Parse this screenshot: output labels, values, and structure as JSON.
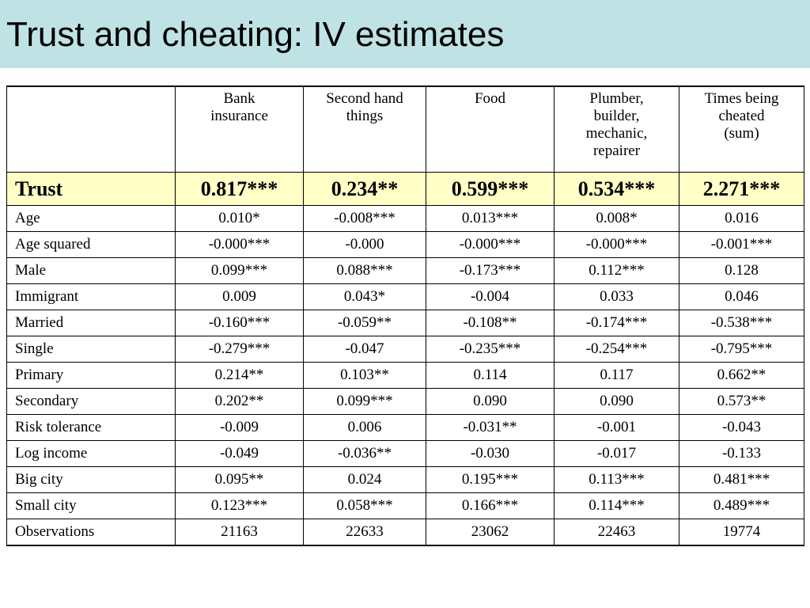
{
  "slide": {
    "title": "Trust and cheating: IV estimates"
  },
  "table": {
    "corner": "",
    "columns": [
      [
        "Bank",
        "insurance"
      ],
      [
        "Second hand",
        "things"
      ],
      [
        "Food"
      ],
      [
        "Plumber,",
        "builder,",
        "mechanic,",
        "repairer"
      ],
      [
        "Times being",
        "cheated",
        "(sum)"
      ]
    ],
    "rows": [
      {
        "label": "Trust",
        "values": [
          "0.817***",
          "0.234**",
          "0.599***",
          "0.534***",
          "2.271***"
        ]
      },
      {
        "label": "Age",
        "values": [
          "0.010*",
          "-0.008***",
          "0.013***",
          "0.008*",
          "0.016"
        ]
      },
      {
        "label": "Age squared",
        "values": [
          "-0.000***",
          "-0.000",
          "-0.000***",
          "-0.000***",
          "-0.001***"
        ]
      },
      {
        "label": "Male",
        "values": [
          "0.099***",
          "0.088***",
          "-0.173***",
          "0.112***",
          "0.128"
        ]
      },
      {
        "label": "Immigrant",
        "values": [
          "0.009",
          "0.043*",
          "-0.004",
          "0.033",
          "0.046"
        ]
      },
      {
        "label": "Married",
        "values": [
          "-0.160***",
          "-0.059**",
          "-0.108**",
          "-0.174***",
          "-0.538***"
        ]
      },
      {
        "label": "Single",
        "values": [
          "-0.279***",
          "-0.047",
          "-0.235***",
          "-0.254***",
          "-0.795***"
        ]
      },
      {
        "label": "Primary",
        "values": [
          "0.214**",
          "0.103**",
          "0.114",
          "0.117",
          "0.662**"
        ]
      },
      {
        "label": "Secondary",
        "values": [
          "0.202**",
          "0.099***",
          "0.090",
          "0.090",
          "0.573**"
        ]
      },
      {
        "label": "Risk tolerance",
        "values": [
          "-0.009",
          "0.006",
          "-0.031**",
          "-0.001",
          "-0.043"
        ]
      },
      {
        "label": "Log income",
        "values": [
          "-0.049",
          "-0.036**",
          "-0.030",
          "-0.017",
          "-0.133"
        ]
      },
      {
        "label": "Big city",
        "values": [
          "0.095**",
          "0.024",
          "0.195***",
          "0.113***",
          "0.481***"
        ]
      },
      {
        "label": "Small city",
        "values": [
          "0.123***",
          "0.058***",
          "0.166***",
          "0.114***",
          "0.489***"
        ]
      },
      {
        "label": "Observations",
        "values": [
          "21163",
          "22633",
          "23062",
          "22463",
          "19774"
        ]
      }
    ]
  },
  "colors": {
    "title_band": "#bfe3e5",
    "highlight_row": "#ffffc6"
  }
}
